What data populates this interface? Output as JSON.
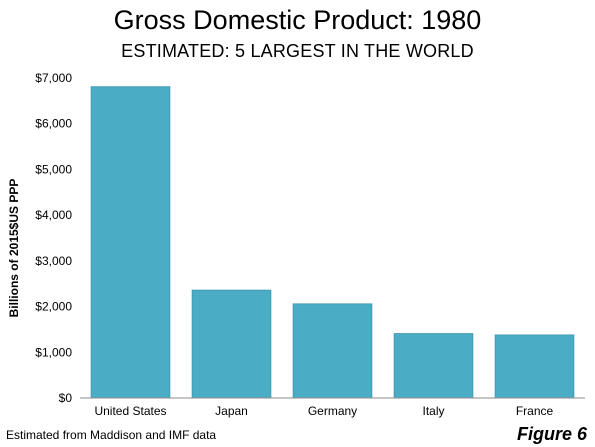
{
  "header": {
    "title": "Gross Domestic Product: 1980",
    "subtitle": "ESTIMATED: 5 LARGEST IN THE WORLD"
  },
  "footer": {
    "source": "Estimated from Maddison and IMF data",
    "figure_label": "Figure 6"
  },
  "chart_data": {
    "type": "bar",
    "title": "Gross Domestic Product: 1980",
    "subtitle": "ESTIMATED: 5 LARGEST IN THE WORLD",
    "xlabel": "",
    "ylabel": "Billions of 2015$US  PPP",
    "categories": [
      "United States",
      "Japan",
      "Germany",
      "Italy",
      "France"
    ],
    "values": [
      6810,
      2360,
      2060,
      1410,
      1380
    ],
    "ylim": [
      0,
      7000
    ],
    "yticks": [
      0,
      1000,
      2000,
      3000,
      4000,
      5000,
      6000,
      7000
    ],
    "ytick_labels": [
      "$0",
      "$1,000",
      "$2,000",
      "$3,000",
      "$4,000",
      "$5,000",
      "$6,000",
      "$7,000"
    ],
    "grid": false,
    "legend": "none",
    "bar_color": "#4BACC6",
    "bar_edge_color": "#3A97B0"
  }
}
